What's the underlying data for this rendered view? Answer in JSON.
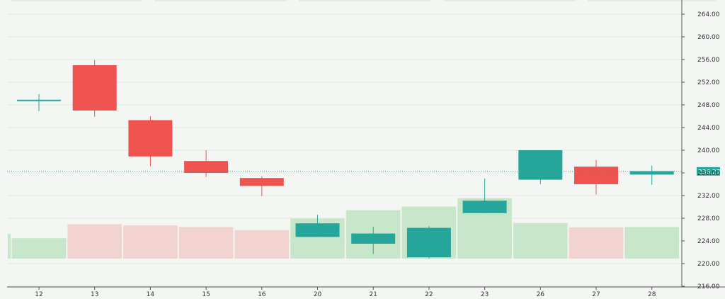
{
  "chart_data": {
    "type": "candlestick",
    "x": [
      "12",
      "13",
      "14",
      "15",
      "16",
      "20",
      "21",
      "22",
      "23",
      "26",
      "27",
      "28"
    ],
    "series": [
      {
        "values": [
          {
            "open": 248.7,
            "high": 249.9,
            "low": 246.9,
            "close": 248.9
          },
          {
            "open": 255.0,
            "high": 255.9,
            "low": 245.9,
            "close": 247.0
          },
          {
            "open": 245.3,
            "high": 246.0,
            "low": 237.2,
            "close": 238.9
          },
          {
            "open": 238.1,
            "high": 240.0,
            "low": 235.3,
            "close": 236.0
          },
          {
            "open": 235.1,
            "high": 235.4,
            "low": 231.9,
            "close": 233.7
          },
          {
            "open": 224.7,
            "high": 228.6,
            "low": 224.7,
            "close": 227.1
          },
          {
            "open": 223.5,
            "high": 226.5,
            "low": 221.7,
            "close": 225.3
          },
          {
            "open": 221.1,
            "high": 226.6,
            "low": 220.9,
            "close": 226.3
          },
          {
            "open": 228.9,
            "high": 235.0,
            "low": 228.9,
            "close": 231.1
          },
          {
            "open": 234.8,
            "high": 240.0,
            "low": 234.0,
            "close": 240.0
          },
          {
            "open": 237.1,
            "high": 238.3,
            "low": 232.2,
            "close": 234.0
          },
          {
            "open": 235.7,
            "high": 237.3,
            "low": 233.9,
            "close": 236.3
          }
        ]
      },
      {
        "name": "volume",
        "values": [
          0.51,
          0.86,
          0.83,
          0.79,
          0.71,
          1.0,
          1.21,
          1.3,
          1.51,
          0.89,
          0.78,
          0.79
        ]
      }
    ],
    "yaxis": {
      "ticks": [
        "264.00",
        "260.00",
        "256.00",
        "252.00",
        "248.00",
        "244.00",
        "240.00",
        "236.00",
        "232.00",
        "228.00",
        "224.00",
        "220.00",
        "216.00"
      ],
      "ylim": [
        216,
        264
      ],
      "position": "right"
    },
    "last_price": {
      "value": 236.27,
      "label": "236.27"
    },
    "colors": {
      "up": "#26a69a",
      "down": "#ef5350",
      "volume_up": "#c8e6c9",
      "volume_down": "#f2d3cf",
      "background": "#f3f6f3",
      "grid": "#e3e8e3"
    },
    "grid": true
  }
}
